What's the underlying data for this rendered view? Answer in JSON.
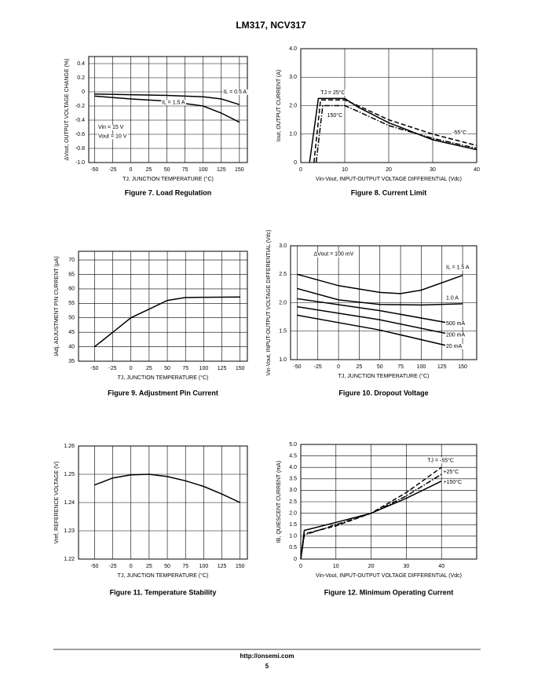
{
  "header": {
    "title": "LM317, NCV317"
  },
  "chart_data": [
    {
      "type": "line",
      "title": "Figure 7. Load Regulation",
      "xlabel": "TJ, JUNCTION TEMPERATURE (°C)",
      "ylabel": "ΔVout, OUTPUT VOLTAGE CHANGE (%)",
      "xlim": [
        -58,
        161
      ],
      "ylim": [
        -1.0,
        0.5
      ],
      "xticks": [
        -50,
        -25,
        0,
        25,
        50,
        75,
        100,
        125,
        150
      ],
      "yticks": [
        0.4,
        0.2,
        0,
        -0.2,
        -0.4,
        -0.6,
        -0.8,
        {
          "value": -1.0,
          "label": "-1.0"
        }
      ],
      "grid": true,
      "series": [
        {
          "color": "#000000",
          "dash": "solid",
          "x": [
            -50,
            0,
            50,
            100,
            125,
            150
          ],
          "values": [
            -0.03,
            -0.04,
            -0.05,
            -0.07,
            -0.1,
            -0.18
          ]
        },
        {
          "color": "#000000",
          "dash": "solid",
          "x": [
            -50,
            0,
            50,
            100,
            125,
            150
          ],
          "values": [
            -0.06,
            -0.1,
            -0.13,
            -0.2,
            -0.3,
            -0.43
          ]
        }
      ],
      "annotations": [
        "IL = 0.5 A",
        "IL = 1.5 A",
        "Vin = 15 V",
        "Vout = 10 V"
      ]
    },
    {
      "type": "line",
      "title": "Figure 8. Current Limit",
      "xlabel": "Vin-Vout, INPUT-OUTPUT VOLTAGE DIFFERENTIAL (Vdc)",
      "ylabel": "Iout, OUTPUT CURRENT (A)",
      "xlim": [
        0,
        40
      ],
      "ylim": [
        0,
        4
      ],
      "xticks": [
        0,
        10,
        20,
        30,
        40
      ],
      "yticks": [
        0,
        {
          "value": 1,
          "label": "1.0"
        },
        {
          "value": 2,
          "label": "2.0"
        },
        {
          "value": 3,
          "label": "3.0"
        },
        {
          "value": 4,
          "label": "4.0"
        }
      ],
      "grid": true,
      "series": [
        {
          "color": "#000000",
          "dash": "solid",
          "x": [
            2,
            4,
            10,
            13,
            20,
            30,
            40
          ],
          "values": [
            0,
            2.25,
            2.25,
            1.95,
            1.4,
            0.8,
            0.45
          ]
        },
        {
          "color": "#000000",
          "dash": "dashed",
          "x": [
            3,
            4.5,
            10,
            13,
            20,
            30,
            40
          ],
          "values": [
            0,
            2.2,
            2.2,
            2.0,
            1.5,
            1.0,
            0.6
          ]
        },
        {
          "color": "#000000",
          "dash": "dashdot",
          "x": [
            3.5,
            5,
            10,
            13,
            20,
            30,
            40
          ],
          "values": [
            0,
            2.0,
            2.0,
            1.8,
            1.3,
            0.85,
            0.5
          ]
        }
      ],
      "annotations": [
        "TJ = 25°C",
        "150°C",
        "-55°C"
      ]
    },
    {
      "type": "line",
      "title": "Figure 9. Adjustment Pin Current",
      "xlabel": "TJ, JUNCTION TEMPERATURE (°C)",
      "ylabel": "IAdj, ADJUSTMENT PIN CURRENT (μA)",
      "xlim": [
        -72,
        160
      ],
      "ylim": [
        35,
        73
      ],
      "xticks": [
        -50,
        -25,
        0,
        25,
        50,
        75,
        100,
        125,
        150
      ],
      "yticks": [
        35,
        40,
        45,
        50,
        55,
        60,
        65,
        70
      ],
      "grid": true,
      "series": [
        {
          "color": "#000000",
          "dash": "solid",
          "x": [
            -50,
            -25,
            0,
            25,
            50,
            75,
            100,
            150
          ],
          "values": [
            40,
            45,
            50,
            53,
            56,
            57,
            57.1,
            57.2
          ]
        }
      ],
      "annotations": []
    },
    {
      "type": "line",
      "title": "Figure 10. Dropout Voltage",
      "xlabel": "TJ, JUNCTION TEMPERATURE (°C)",
      "ylabel": "Vin-Vout, INPUT-OUTPUT VOLTAGE DIFFERENTIAL (Vdc)",
      "xlim": [
        -58,
        167
      ],
      "ylim": [
        1,
        3
      ],
      "xticks": [
        -50,
        -25,
        0,
        25,
        50,
        75,
        100,
        125,
        150
      ],
      "yticks": [
        {
          "value": 1,
          "label": "1.0"
        },
        1.5,
        {
          "value": 2,
          "label": "2.0"
        },
        2.5,
        {
          "value": 3,
          "label": "3.0"
        }
      ],
      "grid": true,
      "series": [
        {
          "color": "#000000",
          "dash": "solid",
          "x": [
            -50,
            0,
            50,
            75,
            100,
            150
          ],
          "values": [
            2.5,
            2.3,
            2.18,
            2.16,
            2.22,
            2.48
          ]
        },
        {
          "color": "#000000",
          "dash": "solid",
          "x": [
            -50,
            0,
            50,
            100,
            150
          ],
          "values": [
            2.25,
            2.05,
            1.97,
            1.96,
            1.98
          ]
        },
        {
          "color": "#000000",
          "dash": "solid",
          "x": [
            -50,
            50,
            150
          ],
          "values": [
            2.07,
            1.86,
            1.6
          ]
        },
        {
          "color": "#000000",
          "dash": "solid",
          "x": [
            -50,
            50,
            150
          ],
          "values": [
            1.93,
            1.7,
            1.4
          ]
        },
        {
          "color": "#000000",
          "dash": "solid",
          "x": [
            -50,
            50,
            150
          ],
          "values": [
            1.78,
            1.52,
            1.18
          ]
        }
      ],
      "annotations": [
        "ΔVout = 100 mV",
        "IL = 1.5 A",
        "1.0 A",
        "500 mA",
        "200 mA",
        "20 mA"
      ]
    },
    {
      "type": "line",
      "title": "Figure 11. Temperature Stability",
      "xlabel": "TJ, JUNCTION TEMPERATURE (°C)",
      "ylabel": "Vref, REFERENCE VOLTAGE (V)",
      "xlim": [
        -72,
        160
      ],
      "ylim": [
        1.22,
        1.26
      ],
      "xticks": [
        -50,
        -25,
        0,
        25,
        50,
        75,
        100,
        125,
        150
      ],
      "yticks": [
        1.22,
        1.23,
        1.24,
        1.25,
        1.26
      ],
      "grid": true,
      "series": [
        {
          "color": "#000000",
          "dash": "solid",
          "x": [
            -50,
            -25,
            0,
            25,
            50,
            75,
            100,
            125,
            150
          ],
          "values": [
            1.2462,
            1.2487,
            1.2498,
            1.25,
            1.2492,
            1.2477,
            1.2457,
            1.243,
            1.24
          ]
        }
      ],
      "annotations": []
    },
    {
      "type": "line",
      "title": "Figure 12. Minimum Operating Current",
      "xlabel": "Vin-Vout, INPUT-OUTPUT VOLTAGE DIFFERENTIAL (Vdc)",
      "ylabel": "IB, QUIESCENT CURRENT (mA)",
      "xlim": [
        0,
        50
      ],
      "ylim": [
        0,
        5
      ],
      "xticks": [
        0,
        10,
        20,
        30,
        40
      ],
      "yticks": [
        0,
        0.5,
        {
          "value": 1,
          "label": "1.0"
        },
        1.5,
        {
          "value": 2,
          "label": "2.0"
        },
        2.5,
        {
          "value": 3,
          "label": "3.0"
        },
        3.5,
        {
          "value": 4,
          "label": "4.0"
        },
        4.5,
        {
          "value": 5,
          "label": "5.0"
        }
      ],
      "grid": true,
      "series": [
        {
          "color": "#000000",
          "dash": "dashed",
          "x": [
            0,
            1,
            10,
            20,
            30,
            40
          ],
          "values": [
            0,
            1.1,
            1.45,
            2.0,
            2.9,
            4.0
          ]
        },
        {
          "color": "#000000",
          "dash": "dashdot",
          "x": [
            0,
            1,
            10,
            20,
            30,
            40
          ],
          "values": [
            0,
            1.05,
            1.5,
            2.0,
            2.75,
            3.7
          ]
        },
        {
          "color": "#000000",
          "dash": "solid",
          "x": [
            0,
            1,
            10,
            20,
            30,
            40
          ],
          "values": [
            0,
            1.25,
            1.6,
            2.0,
            2.65,
            3.4
          ]
        }
      ],
      "annotations": [
        "TJ = -55°C",
        "+25°C",
        "+150°C"
      ]
    }
  ],
  "footer": {
    "url": "http://onsemi.com",
    "page": "5"
  }
}
